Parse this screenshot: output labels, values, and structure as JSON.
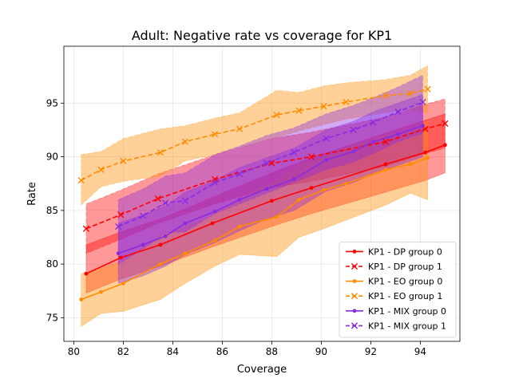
{
  "chart_data": {
    "type": "line",
    "title": "Adult: Negative rate vs coverage for KP1",
    "xlabel": "Coverage",
    "ylabel": "Rate",
    "xlim": [
      79.6,
      95.6
    ],
    "ylim": [
      72.8,
      100.3
    ],
    "xticks": [
      80,
      82,
      84,
      86,
      88,
      90,
      92,
      94
    ],
    "yticks": [
      75,
      80,
      85,
      90,
      95
    ],
    "xtick_labels": [
      "80",
      "82",
      "84",
      "86",
      "88",
      "90",
      "92",
      "94"
    ],
    "ytick_labels": [
      "75",
      "80",
      "85",
      "90",
      "95"
    ],
    "grid": true,
    "legend_position": "lower-right",
    "series": [
      {
        "name": "KP1 - DP group 0",
        "color": "#ff0000",
        "linestyle": "solid",
        "marker": "dot",
        "x": [
          80.5,
          81.9,
          83.5,
          85.6,
          88.0,
          89.6,
          92.6,
          94.2,
          95.0
        ],
        "y": [
          79.1,
          80.6,
          81.8,
          83.8,
          85.9,
          87.1,
          89.3,
          90.4,
          91.1
        ],
        "band_low": [
          77.3,
          78.6,
          79.8,
          81.6,
          83.5,
          84.7,
          86.7,
          87.8,
          88.5
        ],
        "band_high": [
          81.8,
          83.0,
          84.2,
          86.2,
          88.5,
          89.9,
          92.2,
          93.4,
          94.0
        ]
      },
      {
        "name": "KP1 - DP group 1",
        "color": "#ff0000",
        "linestyle": "dashed",
        "marker": "x",
        "x": [
          80.5,
          81.9,
          83.4,
          85.7,
          88.0,
          89.6,
          92.6,
          94.2,
          95.0
        ],
        "y": [
          83.3,
          84.6,
          86.1,
          87.9,
          89.4,
          90.0,
          91.4,
          92.6,
          93.1
        ],
        "band_low": [
          81.0,
          82.3,
          83.8,
          85.6,
          87.1,
          87.7,
          89.1,
          90.3,
          90.8
        ],
        "band_high": [
          85.6,
          86.9,
          88.4,
          90.2,
          91.7,
          92.3,
          93.7,
          94.9,
          95.4
        ]
      },
      {
        "name": "KP1 - EO group 0",
        "color": "#ff8c00",
        "linestyle": "solid",
        "marker": "dot",
        "x": [
          80.3,
          81.1,
          82.0,
          83.5,
          84.5,
          85.7,
          86.7,
          88.2,
          89.1,
          90.1,
          91.0,
          92.6,
          93.6,
          94.3
        ],
        "y": [
          76.7,
          77.4,
          78.2,
          80.0,
          81.0,
          82.2,
          83.5,
          84.4,
          86.0,
          86.9,
          87.5,
          88.8,
          89.3,
          89.9
        ],
        "band_low": [
          74.2,
          75.4,
          75.6,
          76.7,
          78.2,
          79.8,
          80.9,
          80.7,
          82.5,
          83.3,
          84.1,
          85.5,
          86.6,
          86.0
        ],
        "band_high": [
          79.1,
          79.6,
          80.3,
          82.7,
          83.5,
          84.6,
          86.1,
          87.8,
          89.2,
          89.9,
          90.8,
          92.0,
          92.4,
          93.3
        ]
      },
      {
        "name": "KP1 - EO group 1",
        "color": "#ff8c00",
        "linestyle": "dashed",
        "marker": "x",
        "x": [
          80.3,
          81.1,
          82.0,
          83.5,
          84.5,
          85.7,
          86.7,
          88.2,
          89.1,
          90.1,
          91.0,
          92.6,
          93.6,
          94.3
        ],
        "y": [
          87.8,
          88.8,
          89.6,
          90.4,
          91.4,
          92.1,
          92.6,
          93.9,
          94.3,
          94.7,
          95.1,
          95.7,
          95.9,
          96.3
        ],
        "band_low": [
          85.5,
          87.2,
          87.7,
          88.2,
          89.6,
          90.2,
          90.9,
          91.8,
          92.4,
          93.0,
          93.5,
          94.1,
          94.4,
          94.1
        ],
        "band_high": [
          90.2,
          90.5,
          91.7,
          92.6,
          92.9,
          93.6,
          94.1,
          96.2,
          96.0,
          96.6,
          96.9,
          97.2,
          97.6,
          98.5
        ]
      },
      {
        "name": "KP1 - MIX group 0",
        "color": "#8a2be2",
        "linestyle": "solid",
        "marker": "dot",
        "x": [
          81.8,
          82.8,
          83.7,
          84.5,
          85.7,
          86.7,
          87.8,
          88.9,
          90.2,
          91.3,
          92.1,
          93.1,
          94.1
        ],
        "y": [
          81.0,
          81.8,
          82.6,
          83.8,
          84.9,
          86.0,
          87.0,
          87.9,
          89.7,
          90.5,
          91.4,
          92.1,
          92.9
        ],
        "band_low": [
          78.2,
          78.9,
          79.8,
          80.9,
          82.0,
          83.1,
          84.2,
          85.0,
          86.8,
          87.6,
          88.4,
          89.2,
          90.0
        ],
        "band_high": [
          83.8,
          84.6,
          85.4,
          86.7,
          87.8,
          89.0,
          89.9,
          90.8,
          92.5,
          93.3,
          94.2,
          95.0,
          95.8
        ]
      },
      {
        "name": "KP1 - MIX group 1",
        "color": "#8a2be2",
        "linestyle": "dashed",
        "marker": "x",
        "x": [
          81.8,
          82.8,
          83.7,
          84.5,
          85.7,
          86.7,
          87.8,
          88.9,
          90.2,
          91.3,
          92.1,
          93.1,
          94.1
        ],
        "y": [
          83.5,
          84.5,
          85.7,
          85.9,
          87.6,
          88.4,
          89.4,
          90.4,
          91.7,
          92.5,
          93.2,
          94.2,
          95.1
        ],
        "band_low": [
          80.0,
          81.4,
          82.9,
          83.0,
          84.7,
          85.6,
          86.6,
          87.6,
          88.8,
          89.5,
          90.3,
          91.4,
          92.2
        ],
        "band_high": [
          86.0,
          87.0,
          88.2,
          88.5,
          90.2,
          91.0,
          92.0,
          92.7,
          94.0,
          94.8,
          95.5,
          96.5,
          97.6
        ]
      }
    ]
  }
}
